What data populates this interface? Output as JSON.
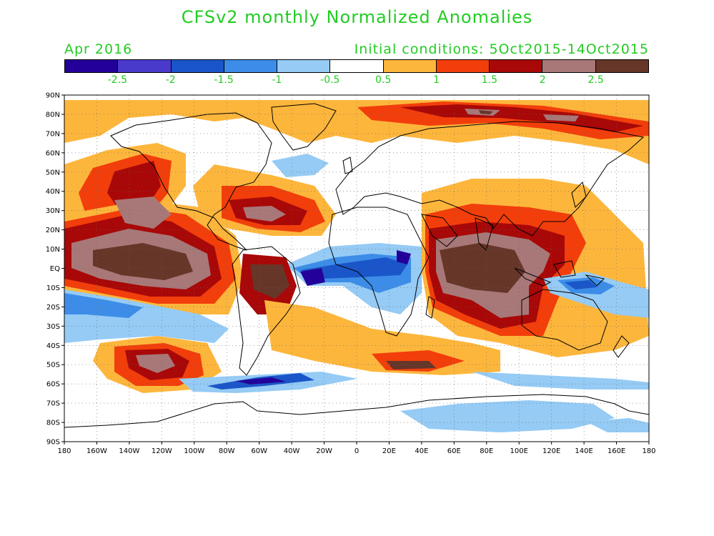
{
  "title": "CFSv2 monthly Normalized Anomalies",
  "forecast_month": "Apr 2016",
  "initial_conditions": "Initial conditions: 5Oct2015-14Oct2015",
  "text_color": "#22cc22",
  "colorbar": {
    "colors": [
      "#24009a",
      "#4a3acb",
      "#1a55c9",
      "#3d8de8",
      "#95cbf5",
      "#ffffff",
      "#fdb63c",
      "#f23e0b",
      "#a80808",
      "#a87878",
      "#663629"
    ],
    "tick_labels": [
      "-2.5",
      "-2",
      "-1.5",
      "-1",
      "-0.5",
      "0.5",
      "1",
      "1.5",
      "2",
      "2.5"
    ]
  },
  "map": {
    "projection": "equirectangular",
    "lon_labels": [
      "180",
      "160W",
      "140W",
      "120W",
      "100W",
      "80W",
      "60W",
      "40W",
      "20W",
      "0",
      "20E",
      "40E",
      "60E",
      "80E",
      "100E",
      "120E",
      "140E",
      "160E",
      "180"
    ],
    "lat_labels": [
      "90N",
      "80N",
      "70N",
      "60N",
      "50N",
      "40N",
      "30N",
      "20N",
      "10N",
      "EQ",
      "10S",
      "20S",
      "30S",
      "40S",
      "50S",
      "60S",
      "70S",
      "80S",
      "90S"
    ],
    "grid": "dotted"
  }
}
